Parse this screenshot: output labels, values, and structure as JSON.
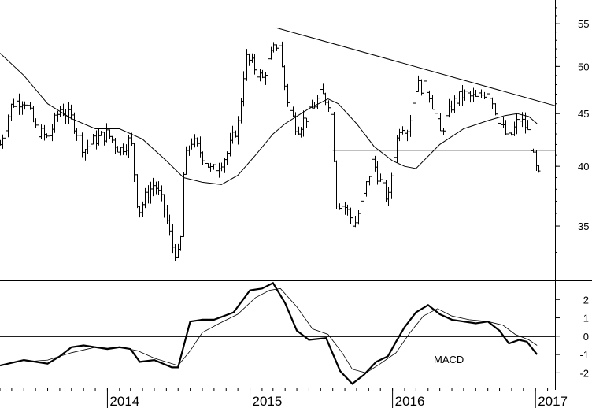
{
  "chart_data": [
    {
      "type": "ohlc",
      "panel": "price",
      "scale": "log",
      "ylim": [
        31,
        58
      ],
      "yticks": [
        35,
        40,
        45,
        50,
        55
      ],
      "x_range": [
        "2013-04-01",
        "2017-02-20"
      ],
      "xticks": [
        {
          "date": "2014-01-01",
          "label": "2014"
        },
        {
          "date": "2015-01-01",
          "label": "2015"
        },
        {
          "date": "2016-01-01",
          "label": "2016"
        },
        {
          "date": "2017-01-01",
          "label": "2017"
        }
      ],
      "price_path": [
        [
          "2013-04-01",
          42.0
        ],
        [
          "2013-05-01",
          46.0
        ],
        [
          "2013-06-01",
          46.5
        ],
        [
          "2013-07-01",
          43.5
        ],
        [
          "2013-08-01",
          42.5
        ],
        [
          "2013-09-01",
          45.5
        ],
        [
          "2013-10-01",
          44.5
        ],
        [
          "2013-11-01",
          41.5
        ],
        [
          "2013-12-01",
          42.5
        ],
        [
          "2014-01-01",
          43.0
        ],
        [
          "2014-02-01",
          41.5
        ],
        [
          "2014-03-01",
          42.5
        ],
        [
          "2014-03-20",
          36.0
        ],
        [
          "2014-04-10",
          37.5
        ],
        [
          "2014-05-01",
          38.5
        ],
        [
          "2014-05-25",
          36.5
        ],
        [
          "2014-06-15",
          33.5
        ],
        [
          "2014-07-05",
          32.5
        ],
        [
          "2014-07-15",
          40.0
        ],
        [
          "2014-08-01",
          42.5
        ],
        [
          "2014-09-01",
          41.0
        ],
        [
          "2014-09-25",
          39.5
        ],
        [
          "2014-11-01",
          41.0
        ],
        [
          "2014-12-01",
          44.0
        ],
        [
          "2014-12-20",
          51.0
        ],
        [
          "2015-01-10",
          50.0
        ],
        [
          "2015-02-01",
          48.5
        ],
        [
          "2015-02-20",
          51.0
        ],
        [
          "2015-03-15",
          53.0
        ],
        [
          "2015-03-25",
          49.0
        ],
        [
          "2015-04-10",
          45.5
        ],
        [
          "2015-05-01",
          43.5
        ],
        [
          "2015-06-01",
          45.0
        ],
        [
          "2015-07-01",
          47.0
        ],
        [
          "2015-07-25",
          46.0
        ],
        [
          "2015-08-10",
          37.0
        ],
        [
          "2015-09-01",
          36.5
        ],
        [
          "2015-09-25",
          35.0
        ],
        [
          "2015-10-20",
          37.5
        ],
        [
          "2015-11-10",
          40.5
        ],
        [
          "2015-12-01",
          38.5
        ],
        [
          "2015-12-20",
          37.0
        ],
        [
          "2016-01-05",
          41.5
        ],
        [
          "2016-01-20",
          44.0
        ],
        [
          "2016-02-10",
          43.5
        ],
        [
          "2016-03-01",
          48.0
        ],
        [
          "2016-04-01",
          47.5
        ],
        [
          "2016-05-01",
          43.0
        ],
        [
          "2016-06-01",
          46.0
        ],
        [
          "2016-07-01",
          47.0
        ],
        [
          "2016-08-01",
          46.5
        ],
        [
          "2016-09-01",
          47.5
        ],
        [
          "2016-10-01",
          44.0
        ],
        [
          "2016-10-25",
          42.5
        ],
        [
          "2016-11-20",
          44.5
        ],
        [
          "2016-12-10",
          43.5
        ],
        [
          "2016-12-30",
          40.0
        ],
        [
          "2017-01-10",
          39.0
        ]
      ],
      "moving_average": [
        [
          "2013-04-01",
          51.5
        ],
        [
          "2013-06-01",
          49.0
        ],
        [
          "2013-08-01",
          46.0
        ],
        [
          "2013-10-01",
          44.5
        ],
        [
          "2013-12-01",
          43.5
        ],
        [
          "2014-02-01",
          43.5
        ],
        [
          "2014-04-01",
          42.5
        ],
        [
          "2014-06-01",
          40.5
        ],
        [
          "2014-07-15",
          39.0
        ],
        [
          "2014-09-01",
          38.6
        ],
        [
          "2014-10-20",
          38.4
        ],
        [
          "2014-12-01",
          39.2
        ],
        [
          "2015-01-15",
          41.0
        ],
        [
          "2015-03-01",
          43.0
        ],
        [
          "2015-04-01",
          44.0
        ],
        [
          "2015-06-01",
          45.5
        ],
        [
          "2015-07-20",
          46.5
        ],
        [
          "2015-08-15",
          46.0
        ],
        [
          "2015-10-01",
          44.0
        ],
        [
          "2015-11-15",
          41.8
        ],
        [
          "2016-01-01",
          40.5
        ],
        [
          "2016-02-01",
          40.0
        ],
        [
          "2016-03-01",
          39.8
        ],
        [
          "2016-05-01",
          42.0
        ],
        [
          "2016-07-01",
          43.5
        ],
        [
          "2016-09-01",
          44.3
        ],
        [
          "2016-10-15",
          44.8
        ],
        [
          "2016-11-15",
          45.0
        ],
        [
          "2016-12-15",
          44.7
        ],
        [
          "2017-01-05",
          44.0
        ]
      ],
      "trendline": [
        [
          "2015-03-10",
          54.5
        ],
        [
          "2017-02-20",
          45.8
        ]
      ],
      "horizontal_line": {
        "y": 41.5,
        "from": "2015-08-01",
        "to": "2017-02-20"
      }
    },
    {
      "type": "line",
      "panel": "macd",
      "label": "MACD",
      "ylim": [
        -2.8,
        3.0
      ],
      "yticks": [
        2,
        1,
        0,
        -1,
        -2
      ],
      "zero_line": 0,
      "series": [
        {
          "role": "macd",
          "points": [
            [
              "2013-04-01",
              -1.6
            ],
            [
              "2013-06-01",
              -1.3
            ],
            [
              "2013-08-01",
              -1.5
            ],
            [
              "2013-09-01",
              -1.1
            ],
            [
              "2013-10-01",
              -0.6
            ],
            [
              "2013-11-01",
              -0.5
            ],
            [
              "2014-01-01",
              -0.7
            ],
            [
              "2014-02-01",
              -0.6
            ],
            [
              "2014-03-01",
              -0.7
            ],
            [
              "2014-03-25",
              -1.4
            ],
            [
              "2014-05-01",
              -1.3
            ],
            [
              "2014-06-15",
              -1.7
            ],
            [
              "2014-07-01",
              -1.7
            ],
            [
              "2014-08-01",
              0.8
            ],
            [
              "2014-09-01",
              0.9
            ],
            [
              "2014-10-01",
              0.9
            ],
            [
              "2014-11-20",
              1.3
            ],
            [
              "2015-01-01",
              2.5
            ],
            [
              "2015-02-01",
              2.6
            ],
            [
              "2015-03-01",
              2.9
            ],
            [
              "2015-04-01",
              1.8
            ],
            [
              "2015-05-01",
              0.3
            ],
            [
              "2015-06-01",
              -0.2
            ],
            [
              "2015-07-15",
              -0.1
            ],
            [
              "2015-08-20",
              -1.9
            ],
            [
              "2015-09-20",
              -2.6
            ],
            [
              "2015-10-20",
              -2.1
            ],
            [
              "2015-11-20",
              -1.4
            ],
            [
              "2015-12-20",
              -1.1
            ],
            [
              "2016-01-10",
              -0.3
            ],
            [
              "2016-02-01",
              0.5
            ],
            [
              "2016-03-01",
              1.3
            ],
            [
              "2016-04-01",
              1.7
            ],
            [
              "2016-05-01",
              1.2
            ],
            [
              "2016-06-01",
              0.9
            ],
            [
              "2016-07-01",
              0.8
            ],
            [
              "2016-08-01",
              0.7
            ],
            [
              "2016-09-01",
              0.8
            ],
            [
              "2016-10-01",
              0.3
            ],
            [
              "2016-10-25",
              -0.4
            ],
            [
              "2016-11-20",
              -0.2
            ],
            [
              "2016-12-10",
              -0.3
            ],
            [
              "2017-01-05",
              -1.0
            ]
          ]
        },
        {
          "role": "signal",
          "points": [
            [
              "2013-04-01",
              -1.4
            ],
            [
              "2013-06-01",
              -1.4
            ],
            [
              "2013-08-01",
              -1.3
            ],
            [
              "2013-10-01",
              -0.9
            ],
            [
              "2013-12-01",
              -0.6
            ],
            [
              "2014-02-01",
              -0.6
            ],
            [
              "2014-03-20",
              -0.8
            ],
            [
              "2014-05-01",
              -1.2
            ],
            [
              "2014-07-01",
              -1.6
            ],
            [
              "2014-08-01",
              -0.8
            ],
            [
              "2014-09-01",
              0.2
            ],
            [
              "2014-10-15",
              0.7
            ],
            [
              "2014-12-01",
              1.2
            ],
            [
              "2015-01-15",
              2.1
            ],
            [
              "2015-02-20",
              2.5
            ],
            [
              "2015-03-20",
              2.6
            ],
            [
              "2015-05-01",
              1.6
            ],
            [
              "2015-06-10",
              0.4
            ],
            [
              "2015-07-20",
              0.1
            ],
            [
              "2015-08-25",
              -0.9
            ],
            [
              "2015-09-20",
              -1.8
            ],
            [
              "2015-10-25",
              -2.0
            ],
            [
              "2015-12-01",
              -1.5
            ],
            [
              "2016-01-10",
              -0.9
            ],
            [
              "2016-02-15",
              0.2
            ],
            [
              "2016-03-20",
              1.1
            ],
            [
              "2016-04-25",
              1.5
            ],
            [
              "2016-06-01",
              1.1
            ],
            [
              "2016-07-15",
              0.9
            ],
            [
              "2016-09-01",
              0.8
            ],
            [
              "2016-10-10",
              0.6
            ],
            [
              "2016-11-10",
              0.1
            ],
            [
              "2016-12-15",
              -0.2
            ],
            [
              "2017-01-05",
              -0.5
            ]
          ]
        }
      ]
    }
  ]
}
